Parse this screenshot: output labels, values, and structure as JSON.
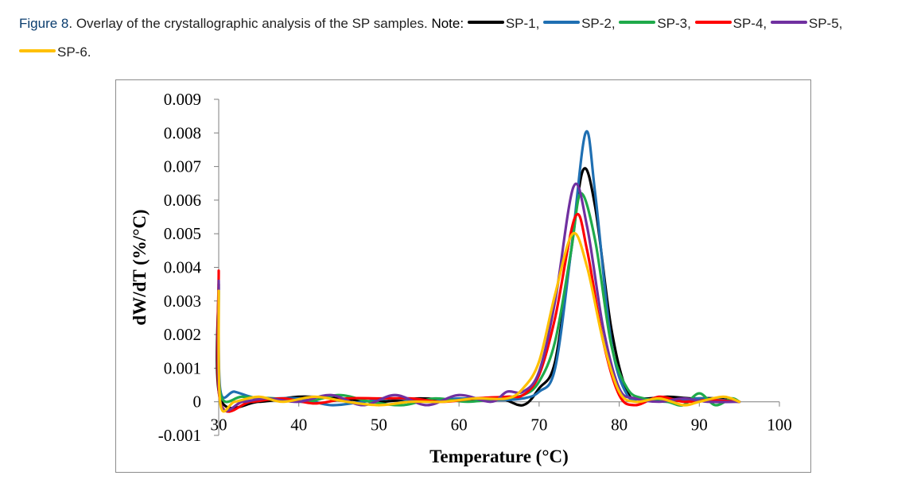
{
  "caption": {
    "label": "Figure 8",
    "text": ". Overlay of the crystallographic analysis of the SP samples. ",
    "note": "Note:",
    "legend": [
      {
        "name": "SP-1,",
        "color": "#000000"
      },
      {
        "name": "SP-2,",
        "color": "#1f6fb2"
      },
      {
        "name": "SP-3,",
        "color": "#1faa4a"
      },
      {
        "name": "SP-4,",
        "color": "#ff0000"
      },
      {
        "name": "SP-5,",
        "color": "#7030a0"
      },
      {
        "name": "SP-6.",
        "color": "#ffc000"
      }
    ]
  },
  "chart_data": {
    "type": "line",
    "title": "",
    "xlabel": "Temperature (°C)",
    "ylabel": "dW/dT (%/°C)",
    "xlim": [
      30,
      100
    ],
    "ylim": [
      -0.001,
      0.009
    ],
    "xticks": [
      "30",
      "40",
      "50",
      "60",
      "70",
      "80",
      "90",
      "100"
    ],
    "yticks": [
      "-0.001",
      "0",
      "0.001",
      "0.002",
      "0.003",
      "0.004",
      "0.005",
      "0.006",
      "0.007",
      "0.008",
      "0.009"
    ],
    "series": [
      {
        "name": "SP-1",
        "color": "#000000",
        "x": [
          30,
          30.2,
          35,
          40,
          45,
          50,
          55,
          60,
          65,
          68,
          70,
          72,
          74,
          75.5,
          77,
          79,
          81,
          83,
          86,
          89,
          92,
          95
        ],
        "y": [
          0.0035,
          0.0001,
          0.0,
          0.00015,
          0.0001,
          0.0,
          0.0001,
          5e-05,
          0.0001,
          -0.0001,
          0.0004,
          0.0012,
          0.0045,
          0.0069,
          0.0058,
          0.0022,
          0.0003,
          0.0001,
          0.00015,
          0.0001,
          0.0001,
          0.0
        ]
      },
      {
        "name": "SP-2",
        "color": "#1f6fb2",
        "x": [
          30,
          30.2,
          32,
          35,
          40,
          44,
          48,
          52,
          56,
          60,
          65,
          68,
          70,
          72,
          74,
          75.8,
          77,
          79,
          81,
          83,
          86,
          90,
          95
        ],
        "y": [
          0.0034,
          0.00035,
          0.0003,
          0.0001,
          0.0001,
          -0.0001,
          0.0,
          0.0001,
          0.0,
          0.0001,
          5e-05,
          0.0001,
          0.0003,
          0.001,
          0.0045,
          0.008,
          0.0062,
          0.0018,
          0.0002,
          0.0001,
          0.0,
          0.0001,
          0.0
        ]
      },
      {
        "name": "SP-3",
        "color": "#1faa4a",
        "x": [
          30,
          30.2,
          33,
          37,
          41,
          45,
          49,
          53,
          57,
          61,
          65,
          68,
          70,
          72,
          74,
          75.2,
          77,
          79,
          81,
          83,
          86,
          88,
          90,
          92,
          94,
          95
        ],
        "y": [
          0.0033,
          0.00025,
          0.00015,
          0.0001,
          0.0,
          0.0002,
          0.0,
          -0.0001,
          0.0001,
          0.0,
          0.0001,
          0.0002,
          0.0006,
          0.0018,
          0.0045,
          0.0062,
          0.0048,
          0.0017,
          0.0004,
          0.0001,
          0.0,
          -0.0001,
          0.00025,
          -0.0001,
          0.0001,
          0.0
        ]
      },
      {
        "name": "SP-4",
        "color": "#ff0000",
        "x": [
          30,
          30.2,
          34,
          38,
          42,
          46,
          50,
          54,
          58,
          62,
          66,
          68,
          70,
          72,
          74.5,
          76,
          78,
          80,
          82,
          85,
          88,
          91,
          95
        ],
        "y": [
          0.0039,
          0.0,
          0.0,
          0.0001,
          -5e-05,
          0.0001,
          0.0001,
          0.0001,
          0.0,
          0.0001,
          0.00015,
          0.0002,
          0.0008,
          0.0025,
          0.0055,
          0.0045,
          0.0018,
          0.0002,
          -0.0001,
          0.00015,
          0.0,
          5e-05,
          0.0
        ]
      },
      {
        "name": "SP-5",
        "color": "#7030a0",
        "x": [
          30,
          30.2,
          33,
          36,
          40,
          44,
          48,
          52,
          56,
          60,
          64,
          66,
          68,
          70,
          72,
          74.3,
          76,
          78,
          80,
          82,
          85,
          88,
          91,
          95
        ],
        "y": [
          0.0036,
          0.0,
          0.0,
          0.0001,
          0.0,
          0.0002,
          -0.0001,
          0.0002,
          -0.0001,
          0.0002,
          0.0,
          0.0003,
          0.0003,
          0.0009,
          0.003,
          0.0064,
          0.0052,
          0.0022,
          0.0004,
          0.0001,
          0.0,
          0.0001,
          0.0,
          0.0
        ]
      },
      {
        "name": "SP-6",
        "color": "#ffc000",
        "x": [
          30,
          30.2,
          32,
          35,
          38,
          42,
          46,
          50,
          54,
          58,
          62,
          66,
          68,
          70,
          72,
          74.2,
          76,
          78,
          80,
          82,
          85,
          88,
          90,
          93,
          95
        ],
        "y": [
          0.0033,
          -5e-05,
          0.0,
          0.00015,
          0.0,
          0.00015,
          0.0,
          -0.0001,
          0.0,
          0.0,
          0.0001,
          0.0001,
          0.0004,
          0.0012,
          0.0032,
          0.005,
          0.004,
          0.0018,
          0.0003,
          0.0,
          0.0001,
          -0.0001,
          0.0,
          0.00015,
          0.0
        ]
      }
    ]
  }
}
